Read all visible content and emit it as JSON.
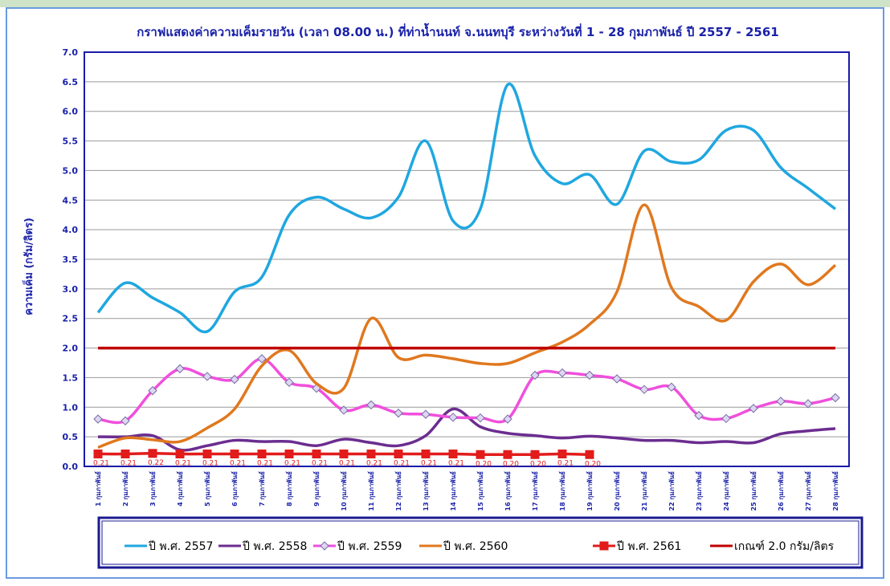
{
  "chart_data": {
    "type": "line",
    "title": "กราฟแสดงค่าความเค็มรายวัน (เวลา 08.00 น.) ที่ท่าน้ำนนท์ จ.นนทบุรี ระหว่างวันที่ 1 - 28 กุมภาพันธ์ ปี 2557 - 2561",
    "y_label": "ความเค็ม (กรัม/ลิตร)",
    "categories": [
      "1 กุมภาพันธ์",
      "2 กุมภาพันธ์",
      "3 กุมภาพันธ์",
      "4 กุมภาพันธ์",
      "5 กุมภาพันธ์",
      "6 กุมภาพันธ์",
      "7 กุมภาพันธ์",
      "8 กุมภาพันธ์",
      "9 กุมภาพันธ์",
      "10 กุมภาพันธ์",
      "11 กุมภาพันธ์",
      "12 กุมภาพันธ์",
      "13 กุมภาพันธ์",
      "14 กุมภาพันธ์",
      "15 กุมภาพันธ์",
      "16 กุมภาพันธ์",
      "17 กุมภาพันธ์",
      "18 กุมภาพันธ์",
      "19 กุมภาพันธ์",
      "20 กุมภาพันธ์",
      "21 กุมภาพันธ์",
      "22 กุมภาพันธ์",
      "23 กุมภาพันธ์",
      "24 กุมภาพันธ์",
      "25 กุมภาพันธ์",
      "26 กุมภาพันธ์",
      "27 กุมภาพันธ์",
      "28 กุมภาพันธ์"
    ],
    "ylim": [
      0,
      7
    ],
    "yticks": [
      {
        "value": 0,
        "label": "0.0"
      },
      0.5,
      {
        "value": 1,
        "label": "1.0"
      },
      1.5,
      {
        "value": 2,
        "label": "2.0"
      },
      2.5,
      {
        "value": 3,
        "label": "3.0"
      },
      3.5,
      {
        "value": 4,
        "label": "4.0"
      },
      4.5,
      {
        "value": 5,
        "label": "5.0"
      },
      5.5,
      {
        "value": 6,
        "label": "6.0"
      },
      6.5,
      {
        "value": 7,
        "label": "7.0"
      }
    ],
    "grid": true,
    "smooth": true,
    "series": [
      {
        "name": "ปี พ.ศ. 2557",
        "color": "#1fa7e0",
        "marker": "none",
        "values": [
          2.6,
          3.1,
          2.85,
          2.6,
          2.28,
          2.95,
          3.2,
          4.25,
          4.55,
          4.35,
          4.2,
          4.55,
          5.5,
          4.15,
          4.35,
          6.45,
          5.25,
          4.78,
          4.93,
          4.43,
          5.33,
          5.15,
          5.18,
          5.68,
          5.68,
          5.05,
          4.7,
          4.35
        ]
      },
      {
        "name": "ปี พ.ศ. 2558",
        "color": "#6b2d90",
        "marker": "none",
        "values": [
          0.5,
          0.5,
          0.52,
          0.28,
          0.35,
          0.44,
          0.42,
          0.42,
          0.35,
          0.46,
          0.4,
          0.35,
          0.52,
          0.97,
          0.67,
          0.56,
          0.52,
          0.48,
          0.51,
          0.48,
          0.44,
          0.44,
          0.4,
          0.42,
          0.4,
          0.55,
          0.6,
          0.64
        ]
      },
      {
        "name": "ปี พ.ศ. 2559",
        "color": "#f04fdc",
        "marker": "diamond",
        "values": [
          0.8,
          0.77,
          1.28,
          1.65,
          1.52,
          1.47,
          1.82,
          1.42,
          1.32,
          0.95,
          1.04,
          0.9,
          0.88,
          0.83,
          0.82,
          0.8,
          1.54,
          1.58,
          1.54,
          1.48,
          1.3,
          1.34,
          0.86,
          0.81,
          0.98,
          1.1,
          1.06,
          1.16
        ]
      },
      {
        "name": "ปี พ.ศ. 2560",
        "color": "#e0781e",
        "marker": "none",
        "values": [
          0.32,
          0.48,
          0.45,
          0.42,
          0.65,
          0.97,
          1.7,
          1.96,
          1.4,
          1.32,
          2.5,
          1.84,
          1.88,
          1.82,
          1.74,
          1.74,
          1.92,
          2.1,
          2.4,
          2.95,
          4.42,
          3.02,
          2.7,
          2.47,
          3.12,
          3.42,
          3.07,
          3.4
        ]
      },
      {
        "name": "ปี พ.ศ. 2561",
        "color": "#e21b1b",
        "marker": "square",
        "values": [
          0.21,
          0.21,
          0.22,
          0.21,
          0.21,
          0.21,
          0.21,
          0.21,
          0.21,
          0.21,
          0.21,
          0.21,
          0.21,
          0.21,
          0.2,
          0.2,
          0.2,
          0.21,
          0.2,
          null,
          null,
          null,
          null,
          null,
          null,
          null,
          null,
          null
        ],
        "value_labels": [
          "0.21",
          "0.21",
          "0.22",
          "0.21",
          "0.21",
          "0.21",
          "0.21",
          "0.21",
          "0.21",
          "0.21",
          "0.21",
          "0.21",
          "0.21",
          "0.21",
          "0.20",
          "0.20",
          "0.20",
          "0.21",
          "0.20",
          null,
          null,
          null,
          null,
          null,
          null,
          null,
          null,
          null
        ]
      },
      {
        "name": "เกณฑ์ 2.0 กรัม/ลิตร",
        "color": "#c00000",
        "marker": "none",
        "values": [
          2,
          2,
          2,
          2,
          2,
          2,
          2,
          2,
          2,
          2,
          2,
          2,
          2,
          2,
          2,
          2,
          2,
          2,
          2,
          2,
          2,
          2,
          2,
          2,
          2,
          2,
          2,
          2
        ]
      }
    ]
  }
}
